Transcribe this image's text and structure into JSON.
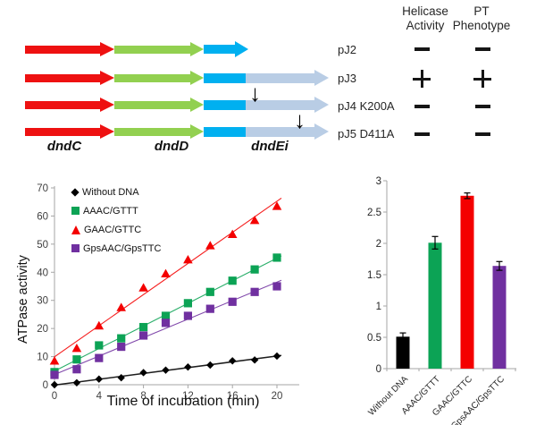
{
  "diagram": {
    "gene_labels": [
      "dndC",
      "dndD",
      "dndEi"
    ],
    "mutation_arrow_icon": "↓",
    "colors": {
      "dndC": "#ee1111",
      "dndD": "#92d050",
      "dndE_blue": "#00b0f0",
      "dndE_extension": "#b9cde5"
    }
  },
  "results_table": {
    "headers": [
      "Helicase Activity",
      "PT Phenotype"
    ],
    "rows": [
      {
        "label": "pJ2",
        "helicase": "−",
        "pt": "−"
      },
      {
        "label": "pJ3",
        "helicase": "+",
        "pt": "+"
      },
      {
        "label": "pJ4 K200A",
        "helicase": "−",
        "pt": "−"
      },
      {
        "label": "pJ5 D411A",
        "helicase": "−",
        "pt": "−"
      }
    ]
  },
  "chart_data": [
    {
      "type": "scatter",
      "xlabel": "Time of incubation (min)",
      "ylabel": "ATPase activity",
      "x": [
        0,
        2,
        4,
        6,
        8,
        10,
        12,
        14,
        16,
        18,
        20
      ],
      "xticks": [
        0,
        4,
        8,
        12,
        16,
        20
      ],
      "ylim": [
        0,
        70
      ],
      "yticks": [
        0,
        10,
        20,
        30,
        40,
        50,
        60,
        70
      ],
      "legend_position": "top-left",
      "trendlines": "linear",
      "series": [
        {
          "name": "Without DNA",
          "marker": "diamond",
          "color": "#000000",
          "values": [
            0,
            0.7,
            2,
            2.5,
            4.3,
            5.2,
            6.3,
            7,
            8.5,
            8.8,
            10.2
          ]
        },
        {
          "name": "AAAC/GTTT",
          "marker": "square",
          "color": "#0ca355",
          "values": [
            4.5,
            9,
            14,
            16.5,
            20.5,
            24.5,
            29,
            33,
            37,
            41,
            45.2
          ]
        },
        {
          "name": "GAAC/GTTC",
          "marker": "triangle",
          "color": "#f40000",
          "values": [
            8.5,
            13,
            21,
            27.5,
            34.5,
            39.5,
            44.5,
            49.5,
            53.5,
            58.5,
            63.5
          ]
        },
        {
          "name": "GpsAAC/GpsTTC",
          "marker": "square",
          "color": "#7030a0",
          "values": [
            3.5,
            5.5,
            9.5,
            13.5,
            17.5,
            22,
            24.5,
            27,
            29.5,
            33,
            35
          ]
        }
      ]
    },
    {
      "type": "bar",
      "categories": [
        "Without DNA",
        "AAAC/GTTT",
        "GAAC/GTTC",
        "GpsAAC/GpsTTC"
      ],
      "values": [
        0.51,
        2.01,
        2.76,
        1.64
      ],
      "errors": [
        0.06,
        0.1,
        0.045,
        0.07
      ],
      "bar_colors": [
        "#000000",
        "#0ca355",
        "#f40000",
        "#7030a0"
      ],
      "ylim": [
        0,
        3
      ],
      "ytick_labels": [
        "0",
        "0.5",
        "1",
        "1.5",
        "2",
        "2.5",
        "3"
      ],
      "grid": false
    }
  ]
}
